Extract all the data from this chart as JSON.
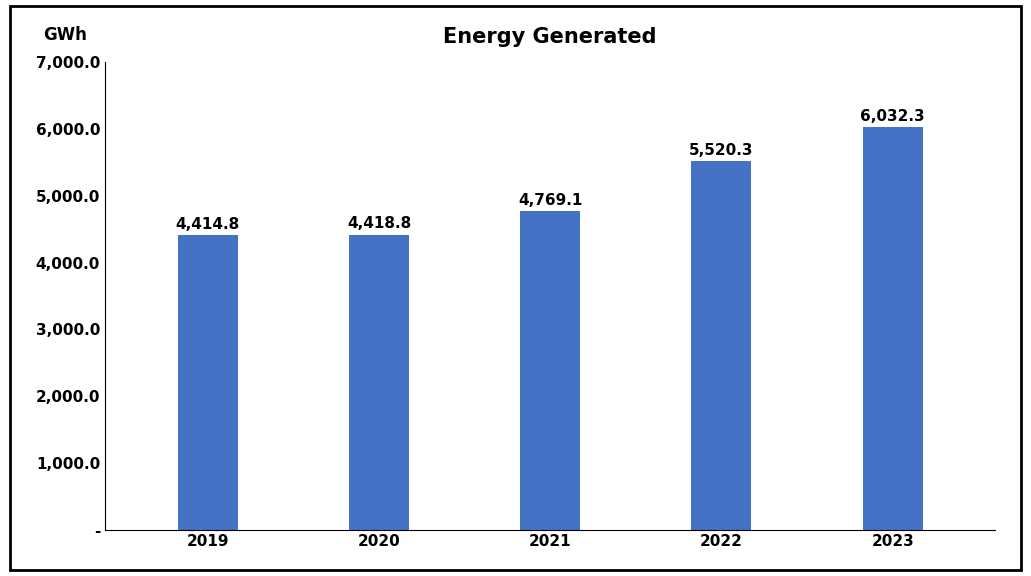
{
  "title": "Energy Generated",
  "ylabel": "GWh",
  "categories": [
    "2019",
    "2020",
    "2021",
    "2022",
    "2023"
  ],
  "values": [
    4414.8,
    4418.8,
    4769.1,
    5520.3,
    6032.3
  ],
  "bar_color": "#4472C4",
  "bar_labels": [
    "4,414.8",
    "4,418.8",
    "4,769.1",
    "5,520.3",
    "6,032.3"
  ],
  "ylim": [
    0,
    7000
  ],
  "yticks": [
    0,
    1000,
    2000,
    3000,
    4000,
    5000,
    6000,
    7000
  ],
  "ytick_labels": [
    "-",
    "1,000.0",
    "2,000.0",
    "3,000.0",
    "4,000.0",
    "5,000.0",
    "6,000.0",
    "7,000.0"
  ],
  "background_color": "#ffffff",
  "border_color": "#000000",
  "title_fontsize": 15,
  "label_fontsize": 12,
  "tick_fontsize": 11,
  "bar_label_fontsize": 11,
  "bar_width": 0.35
}
